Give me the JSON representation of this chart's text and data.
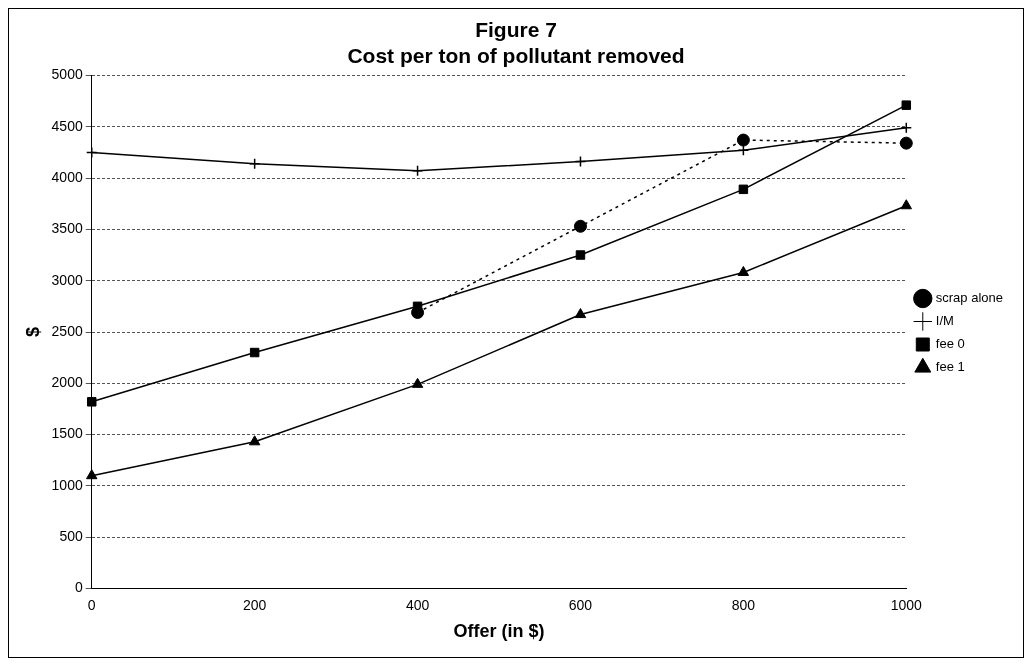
{
  "chart_data": {
    "type": "line",
    "title": [
      "Figure 7",
      "Cost per ton of pollutant removed"
    ],
    "xlabel": "Offer (in $)",
    "ylabel": "$",
    "x": [
      0,
      200,
      400,
      600,
      800,
      1000
    ],
    "xlim": [
      0,
      1000
    ],
    "xticks": [
      0,
      200,
      400,
      600,
      800,
      1000
    ],
    "ylim": [
      0,
      5000
    ],
    "yticks": [
      0,
      500,
      1000,
      1500,
      2000,
      2500,
      3000,
      3500,
      4000,
      4500,
      5000
    ],
    "grid": "y",
    "legend": "right",
    "series": [
      {
        "name": "scrap alone",
        "color": "#000000",
        "marker": "circle",
        "line_style": "dotted",
        "values": [
          null,
          null,
          2690,
          3530,
          4370,
          4340
        ]
      },
      {
        "name": "I/M",
        "color": "#000000",
        "marker": "cross",
        "line_style": "solid",
        "values": [
          4250,
          4140,
          4070,
          4160,
          4270,
          4490
        ]
      },
      {
        "name": "fee 0",
        "color": "#000000",
        "marker": "square",
        "line_style": "solid",
        "values": [
          1820,
          2300,
          2750,
          3250,
          3890,
          4710
        ]
      },
      {
        "name": "fee 1",
        "color": "#000000",
        "marker": "triangle",
        "line_style": "solid",
        "values": [
          1100,
          1430,
          1990,
          2670,
          3080,
          3730
        ]
      }
    ]
  }
}
